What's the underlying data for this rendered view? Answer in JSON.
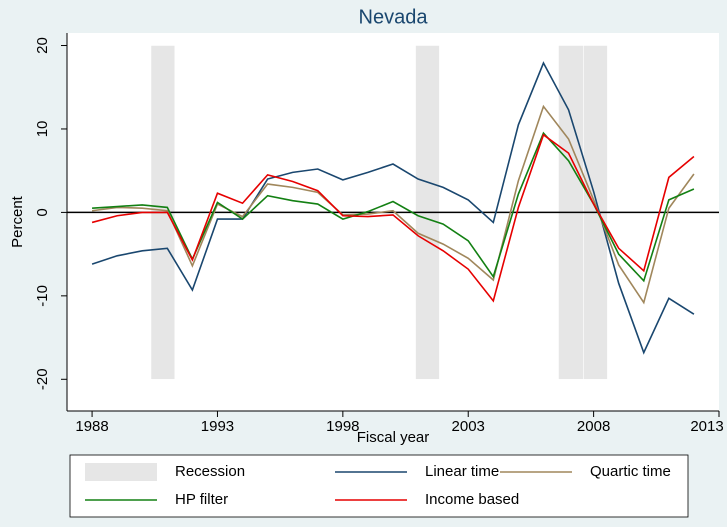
{
  "chart_data": {
    "type": "line",
    "title": "Nevada",
    "x_label": "Fiscal year",
    "y_label": "Percent",
    "x": [
      1988,
      1989,
      1990,
      1991,
      1992,
      1993,
      1994,
      1995,
      1996,
      1997,
      1998,
      1999,
      2000,
      2001,
      2002,
      2003,
      2004,
      2005,
      2006,
      2007,
      2008,
      2009,
      2010,
      2011,
      2012
    ],
    "series": [
      {
        "name": "Linear time",
        "color": "#1a476f",
        "values": [
          -6.2,
          -5.2,
          -4.6,
          -4.3,
          -9.3,
          -0.8,
          -0.8,
          4.0,
          4.8,
          5.2,
          3.9,
          4.8,
          5.8,
          4.0,
          3.0,
          1.5,
          -1.2,
          10.5,
          17.9,
          12.3,
          2.5,
          -8.5,
          -16.8,
          -10.3,
          -12.2
        ]
      },
      {
        "name": "Quartic time",
        "color": "#a0875c",
        "values": [
          0.2,
          0.6,
          0.5,
          0.2,
          -6.4,
          1.0,
          -0.5,
          3.4,
          3.0,
          2.4,
          -0.3,
          -0.2,
          0.2,
          -2.5,
          -3.8,
          -5.5,
          -8.1,
          3.8,
          12.7,
          8.8,
          1.5,
          -6.3,
          -10.8,
          0.5,
          4.6
        ]
      },
      {
        "name": "HP filter",
        "color": "#138013",
        "values": [
          0.5,
          0.7,
          0.9,
          0.6,
          -5.6,
          1.2,
          -0.8,
          2.0,
          1.4,
          1.0,
          -0.8,
          0.1,
          1.3,
          -0.4,
          -1.4,
          -3.4,
          -7.7,
          2.2,
          9.5,
          6.2,
          1.0,
          -5.0,
          -8.2,
          1.5,
          2.8
        ]
      },
      {
        "name": "Income based",
        "color": "#e60000",
        "values": [
          -1.2,
          -0.4,
          0.0,
          0.0,
          -5.7,
          2.3,
          1.1,
          4.5,
          3.7,
          2.6,
          -0.4,
          -0.5,
          -0.3,
          -2.8,
          -4.6,
          -6.8,
          -10.6,
          0.6,
          9.3,
          7.1,
          1.0,
          -4.3,
          -7.0,
          4.2,
          6.7
        ]
      }
    ],
    "recession": {
      "name": "Recession",
      "color": "#e6e6e6",
      "low": -20,
      "high": 20,
      "periods": [
        [
          1990.35,
          1991.3
        ],
        [
          2000.9,
          2001.85
        ],
        [
          2006.6,
          2007.6
        ],
        [
          2007.6,
          2008.55
        ]
      ]
    },
    "xlim": [
      1987,
      2013
    ],
    "xticks": [
      1988,
      1993,
      1998,
      2003,
      2008,
      2013
    ],
    "ylim": [
      -23.8,
      21.5
    ],
    "yticks": [
      -20,
      -10,
      0,
      10,
      20
    ],
    "zero_line": 0
  }
}
